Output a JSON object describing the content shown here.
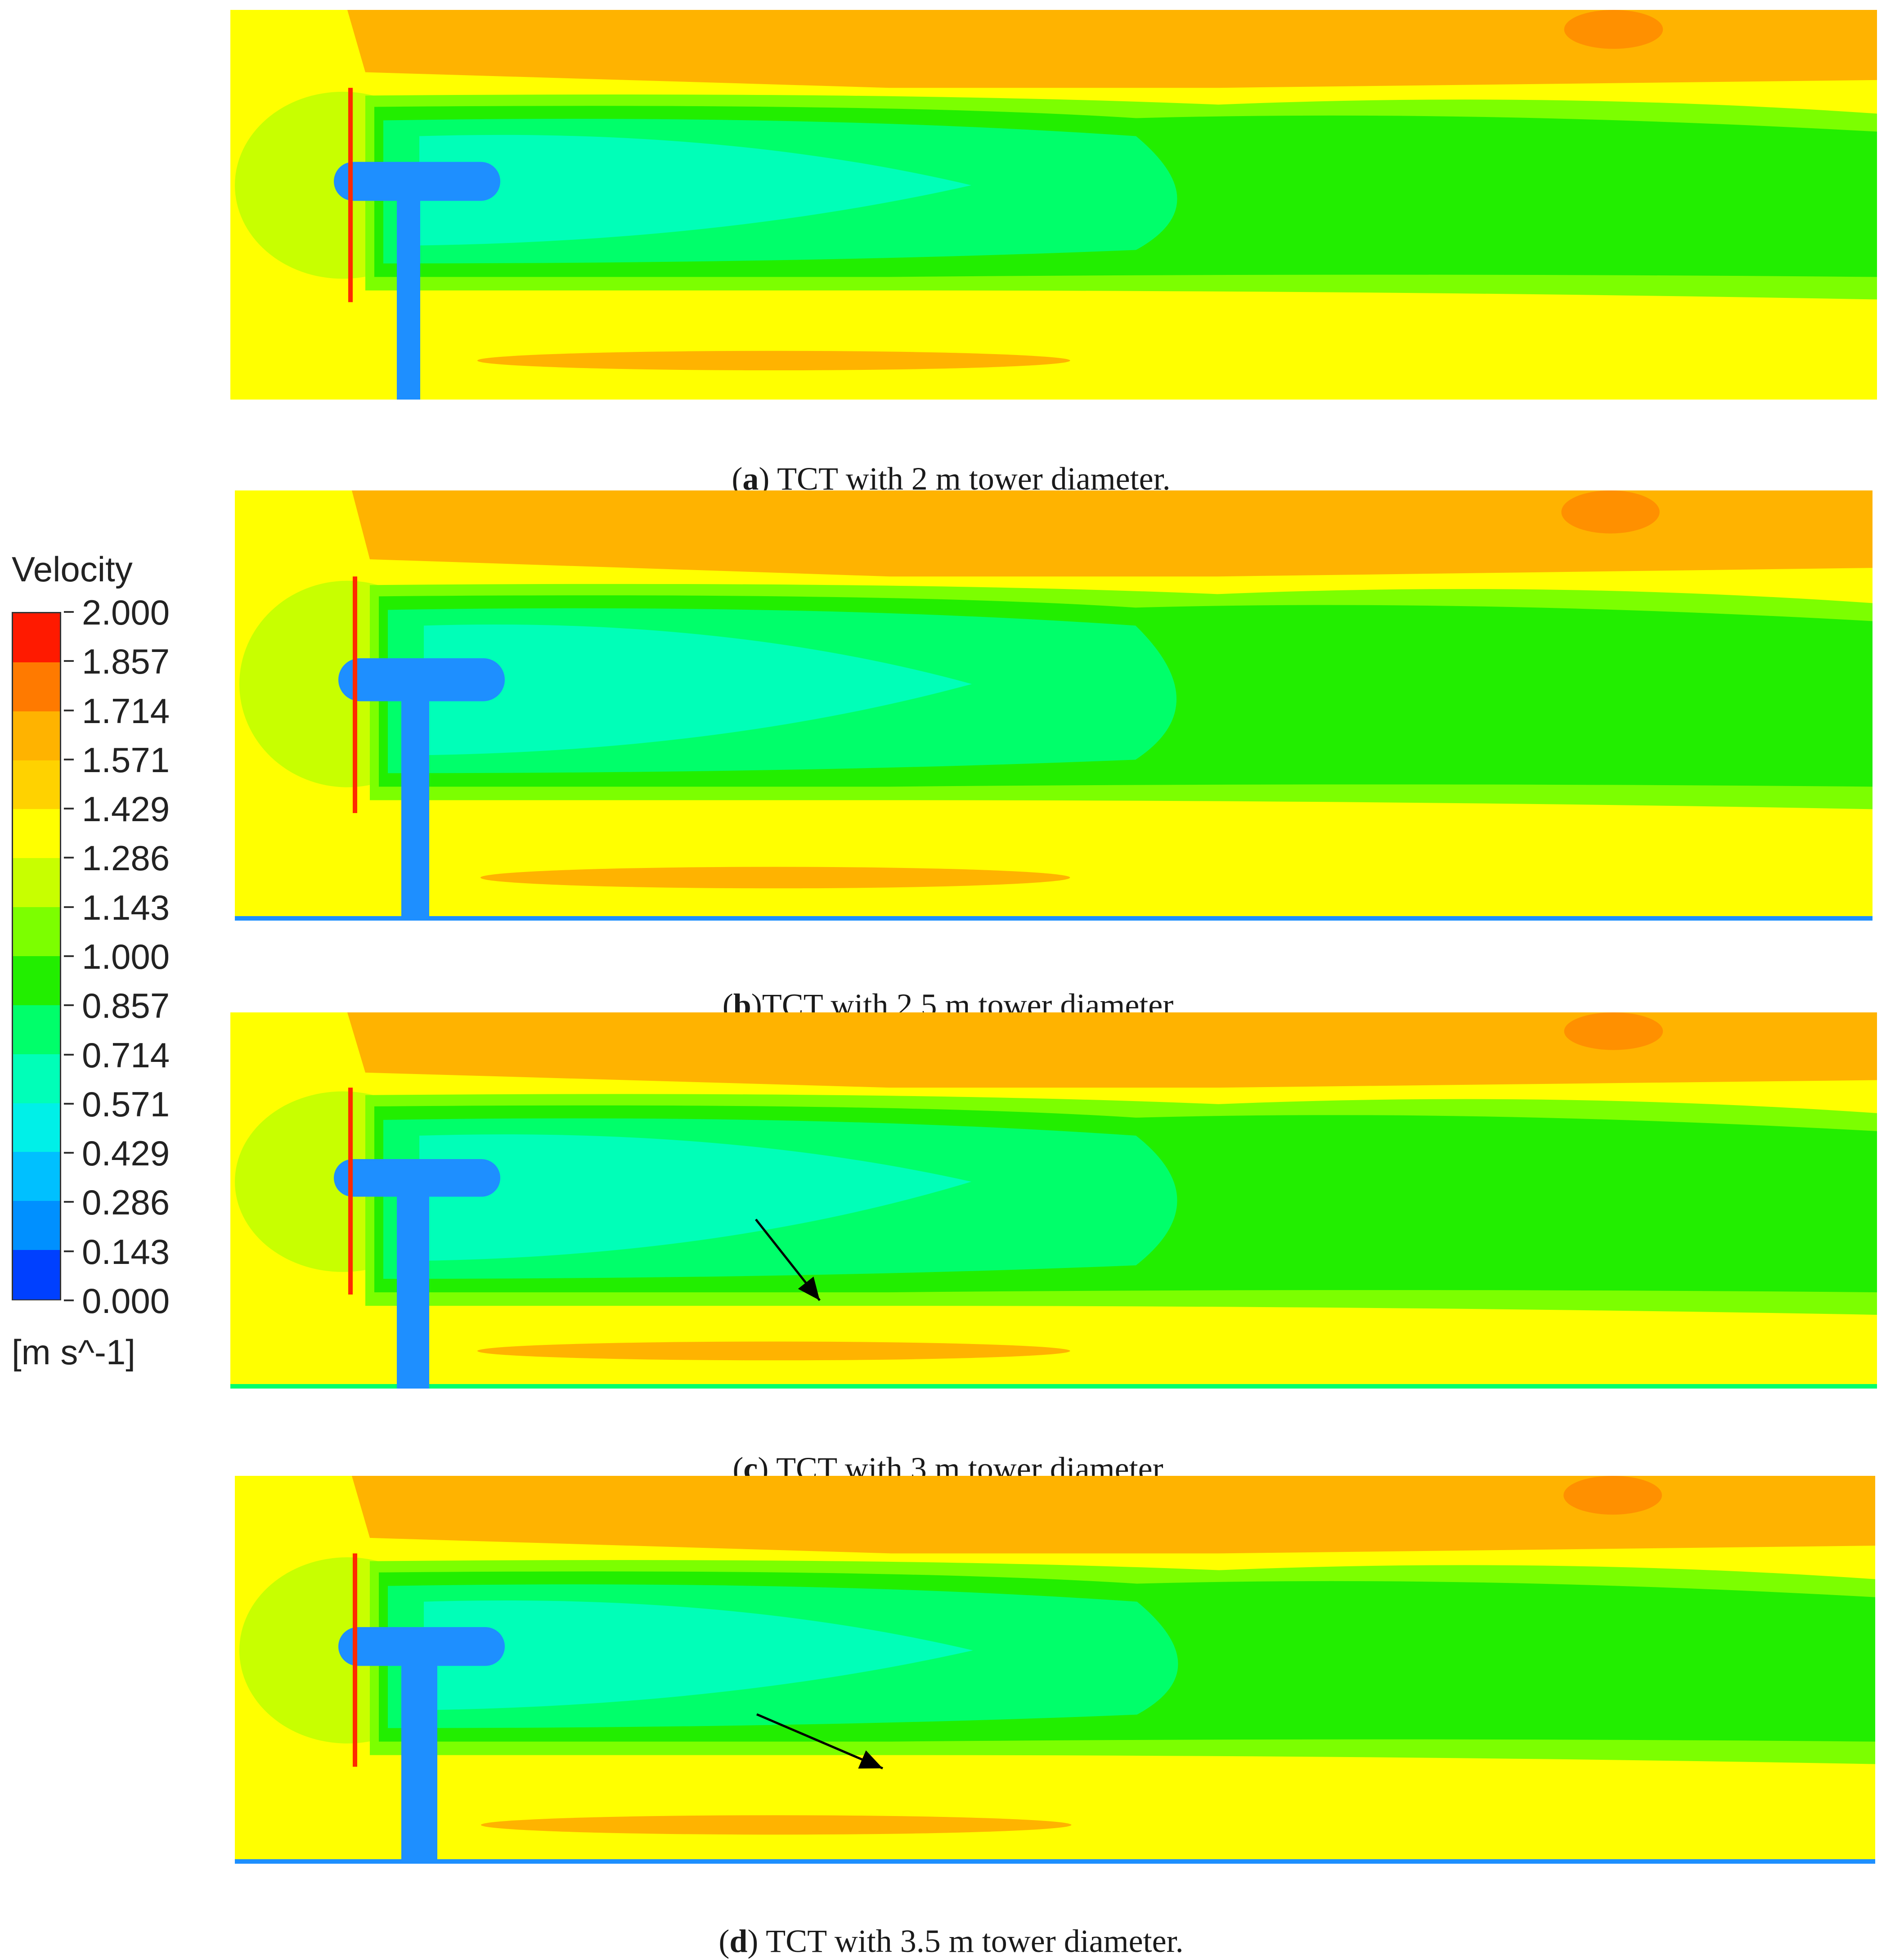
{
  "chart_data": {
    "type": "heatmap",
    "colorbar": {
      "title": "Velocity",
      "unit": "[m s^-1]",
      "ticks": [
        "2.000",
        "1.857",
        "1.714",
        "1.571",
        "1.429",
        "1.286",
        "1.143",
        "1.000",
        "0.857",
        "0.714",
        "0.571",
        "0.429",
        "0.286",
        "0.143",
        "0.000"
      ],
      "range": [
        0,
        2.0
      ],
      "colors": [
        "#ff1a00",
        "#ff7a00",
        "#ffb300",
        "#ffd200",
        "#ffff00",
        "#c8ff00",
        "#7cff00",
        "#22ee00",
        "#00ff6a",
        "#00ffb8",
        "#00f0e8",
        "#00c0ff",
        "#0090ff",
        "#0040ff"
      ]
    },
    "panels": [
      {
        "id": "a",
        "tag": "a",
        "caption": "TCT with 2 m tower diameter.",
        "caption_prefix": "(",
        "caption_mid": ") ",
        "tower_diameter_m": 2.0
      },
      {
        "id": "b",
        "tag": "b",
        "caption": "TCT with 2.5 m tower diameter.",
        "caption_prefix": "(",
        "caption_mid": ")",
        "tower_diameter_m": 2.5
      },
      {
        "id": "c",
        "tag": "c",
        "caption": "TCT with 3 m tower diameter.",
        "caption_prefix": "(",
        "caption_mid": ") ",
        "tower_diameter_m": 3.0
      },
      {
        "id": "d",
        "tag": "d",
        "caption": "TCT with 3.5 m tower diameter.",
        "caption_prefix": "(",
        "caption_mid": ") ",
        "tower_diameter_m": 3.5
      }
    ]
  }
}
